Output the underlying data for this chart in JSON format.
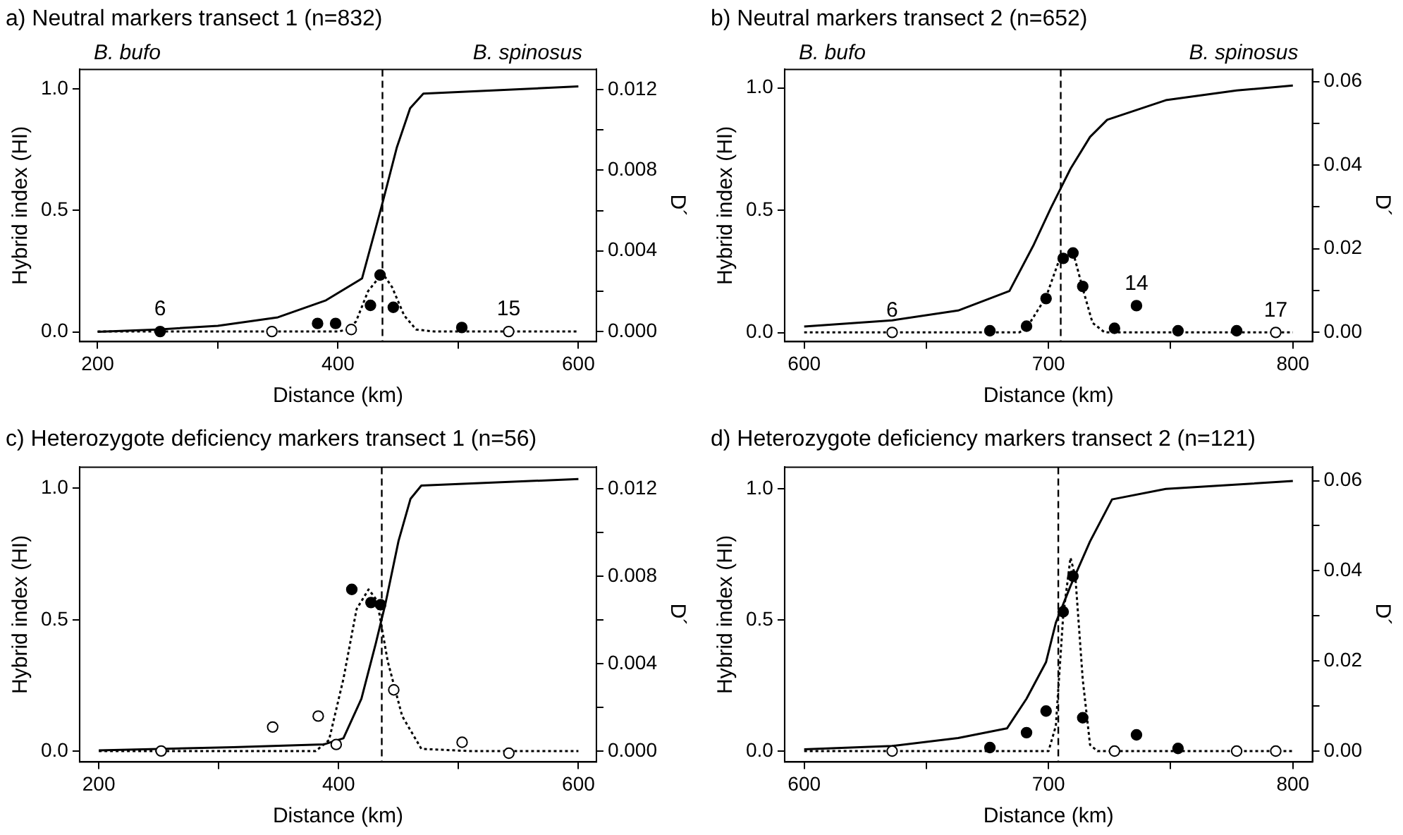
{
  "chart_data": [
    {
      "type": "line",
      "title": "a) Neutral markers transect 1 (n=832)",
      "xlabel": "Distance (km)",
      "ylabel": "Hybrid index (HI)",
      "y2label": "D´",
      "annotations": [
        "B. bufo",
        "B. spinosus",
        {
          "text": "6",
          "x": 252,
          "y": 0
        },
        {
          "text": "15",
          "x": 542,
          "y": 0
        }
      ],
      "xlim": [
        185,
        615
      ],
      "xticks": [
        200,
        {
          "value": 300,
          "label": null
        },
        400,
        {
          "value": 500,
          "label": null
        },
        600
      ],
      "ylim": [
        -0.04,
        1.08
      ],
      "yticks": [
        {
          "value": 0,
          "label": "0.0"
        },
        {
          "value": 0.5,
          "label": "0.5"
        },
        {
          "value": 1,
          "label": "1.0"
        }
      ],
      "y2lim": [
        -0.0005,
        0.013
      ],
      "y2ticks": [
        {
          "value": 0,
          "label": "0.000"
        },
        {
          "value": 0.002,
          "label": null
        },
        {
          "value": 0.004,
          "label": "0.004"
        },
        {
          "value": 0.006,
          "label": null
        },
        {
          "value": 0.008,
          "label": "0.008"
        },
        {
          "value": 0.01,
          "label": null
        },
        {
          "value": 0.012,
          "label": "0.012"
        }
      ],
      "grid": false,
      "legend": false,
      "ref_lines": [
        {
          "axis": "x",
          "value": 437,
          "line_style": "dashed",
          "color": "#000000"
        }
      ],
      "series": [
        {
          "type": "line",
          "color": "#000000",
          "line_style": "solid",
          "marker": "none",
          "x": [
            200,
            250,
            300,
            350,
            390,
            420,
            431,
            437,
            449,
            460,
            471,
            600
          ],
          "values": [
            0.0,
            0.01,
            0.025,
            0.06,
            0.13,
            0.22,
            0.42,
            0.53,
            0.76,
            0.92,
            0.98,
            1.01
          ]
        },
        {
          "type": "line",
          "axis": "y2",
          "color": "#000000",
          "line_style": "dotted",
          "marker": "none",
          "x": [
            200,
            400,
            408,
            415,
            425,
            437,
            445,
            455,
            465,
            480,
            600
          ],
          "values": [
            0,
            0,
            0.0001,
            0.0005,
            0.002,
            0.0029,
            0.0022,
            0.0008,
            0.0001,
            0,
            0
          ]
        },
        {
          "type": "scatter",
          "axis": "y2",
          "color": "#000000",
          "marker": "circle",
          "x": [
            252,
            383,
            398,
            427,
            435,
            446,
            503
          ],
          "values": [
            0,
            0.0004,
            0.0004,
            0.0013,
            0.0028,
            0.0012,
            0.0002
          ]
        },
        {
          "type": "scatter",
          "axis": "y2",
          "color": "#ffffff",
          "marker": "circle",
          "x": [
            345,
            411,
            542
          ],
          "values": [
            0,
            0.0001,
            0
          ]
        }
      ]
    },
    {
      "type": "line",
      "title": "b) Neutral markers transect 2 (n=652)",
      "xlabel": "Distance (km)",
      "ylabel": "Hybrid index (HI)",
      "y2label": "D´",
      "annotations": [
        "B. bufo",
        "B. spinosus",
        {
          "text": "6",
          "x": 636,
          "y": 0
        },
        {
          "text": "14",
          "x": 736,
          "y": 0.0064
        },
        {
          "text": "17",
          "x": 793,
          "y": 0
        }
      ],
      "xlim": [
        592,
        808
      ],
      "xticks": [
        600,
        {
          "value": 650,
          "label": null
        },
        700,
        {
          "value": 750,
          "label": null
        },
        800
      ],
      "ylim": [
        -0.037,
        1.076
      ],
      "yticks": [
        {
          "value": 0,
          "label": "0.0"
        },
        {
          "value": 0.5,
          "label": "0.5"
        },
        {
          "value": 1,
          "label": "1.0"
        }
      ],
      "y2lim": [
        -0.0022,
        0.0629
      ],
      "y2ticks": [
        {
          "value": 0,
          "label": "0.00"
        },
        {
          "value": 0.01,
          "label": null
        },
        {
          "value": 0.02,
          "label": "0.02"
        },
        {
          "value": 0.03,
          "label": null
        },
        {
          "value": 0.04,
          "label": "0.04"
        },
        {
          "value": 0.05,
          "label": null
        },
        {
          "value": 0.06,
          "label": "0.06"
        }
      ],
      "grid": false,
      "legend": false,
      "ref_lines": [
        {
          "axis": "x",
          "value": 705,
          "line_style": "dashed",
          "color": "#000000"
        }
      ],
      "series": [
        {
          "type": "line",
          "color": "#000000",
          "line_style": "solid",
          "marker": "none",
          "x": [
            600,
            636,
            663,
            684,
            694,
            701,
            709,
            717,
            724,
            748,
            777,
            800
          ],
          "values": [
            0.025,
            0.05,
            0.09,
            0.17,
            0.36,
            0.51,
            0.67,
            0.8,
            0.87,
            0.95,
            0.99,
            1.01
          ]
        },
        {
          "type": "line",
          "axis": "y2",
          "color": "#000000",
          "line_style": "dotted",
          "marker": "none",
          "x": [
            600,
            688,
            691,
            699,
            704,
            710,
            714,
            718,
            723,
            800
          ],
          "values": [
            0,
            0,
            0.001,
            0.0085,
            0.0167,
            0.0193,
            0.0105,
            0.0023,
            0,
            0
          ]
        },
        {
          "type": "scatter",
          "axis": "y2",
          "color": "#000000",
          "marker": "circle",
          "x": [
            676,
            691,
            699,
            706,
            710,
            714,
            727,
            736,
            753,
            777
          ],
          "values": [
            0.0004,
            0.0015,
            0.0081,
            0.0177,
            0.019,
            0.011,
            0.001,
            0.0064,
            0.0004,
            0.0004
          ]
        },
        {
          "type": "scatter",
          "axis": "y2",
          "color": "#ffffff",
          "marker": "circle",
          "x": [
            636,
            793
          ],
          "values": [
            0,
            0
          ]
        }
      ]
    },
    {
      "type": "line",
      "title": "c) Heterozygote deficiency markers transect 1 (n=56)",
      "xlabel": "Distance (km)",
      "ylabel": "Hybrid index (HI)",
      "y2label": "D´",
      "xlim": [
        184,
        615
      ],
      "xticks": [
        200,
        {
          "value": 300,
          "label": null
        },
        400,
        {
          "value": 500,
          "label": null
        },
        600
      ],
      "ylim": [
        -0.04,
        1.08
      ],
      "yticks": [
        {
          "value": 0,
          "label": "0.0"
        },
        {
          "value": 0.5,
          "label": "0.5"
        },
        {
          "value": 1,
          "label": "1.0"
        }
      ],
      "y2lim": [
        -0.0005,
        0.013
      ],
      "y2ticks": [
        {
          "value": 0,
          "label": "0.000"
        },
        {
          "value": 0.002,
          "label": null
        },
        {
          "value": 0.004,
          "label": "0.004"
        },
        {
          "value": 0.006,
          "label": null
        },
        {
          "value": 0.008,
          "label": "0.008"
        },
        {
          "value": 0.01,
          "label": null
        },
        {
          "value": 0.012,
          "label": "0.012"
        }
      ],
      "grid": false,
      "legend": false,
      "ref_lines": [
        {
          "axis": "x",
          "value": 436,
          "line_style": "dashed",
          "color": "#000000"
        }
      ],
      "series": [
        {
          "type": "line",
          "color": "#000000",
          "line_style": "solid",
          "marker": "none",
          "x": [
            200,
            312,
            388,
            404,
            419,
            431,
            439,
            450,
            460,
            469,
            600
          ],
          "values": [
            0.004,
            0.016,
            0.027,
            0.05,
            0.2,
            0.41,
            0.56,
            0.8,
            0.96,
            1.01,
            1.035
          ]
        },
        {
          "type": "line",
          "axis": "y2",
          "color": "#000000",
          "line_style": "dotted",
          "marker": "none",
          "x": [
            200,
            381,
            392,
            404,
            415,
            425,
            432,
            441,
            453,
            469,
            508,
            600
          ],
          "values": [
            0,
            0,
            0.0005,
            0.0033,
            0.0065,
            0.0074,
            0.0069,
            0.0041,
            0.0016,
            0.0001,
            0,
            0
          ]
        },
        {
          "type": "scatter",
          "axis": "y2",
          "color": "#000000",
          "marker": "circle",
          "x": [
            411,
            427,
            435
          ],
          "values": [
            0.0074,
            0.0068,
            0.0067
          ]
        },
        {
          "type": "scatter",
          "axis": "y2",
          "color": "#ffffff",
          "marker": "circle",
          "x": [
            252,
            345,
            383,
            398,
            446,
            503,
            542
          ],
          "values": [
            0,
            0.0011,
            0.0016,
            0.0003,
            0.0028,
            0.0004,
            -0.0001
          ]
        }
      ]
    },
    {
      "type": "line",
      "title": "d) Heterozygote deficiency markers transect 2 (n=121)",
      "xlabel": "Distance (km)",
      "ylabel": "Hybrid index (HI)",
      "y2label": "D´",
      "xlim": [
        592,
        808
      ],
      "xticks": [
        600,
        {
          "value": 650,
          "label": null
        },
        700,
        {
          "value": 750,
          "label": null
        },
        800
      ],
      "ylim": [
        -0.041,
        1.083
      ],
      "yticks": [
        {
          "value": 0,
          "label": "0.0"
        },
        {
          "value": 0.5,
          "label": "0.5"
        },
        {
          "value": 1,
          "label": "1.0"
        }
      ],
      "y2lim": [
        -0.0024,
        0.063
      ],
      "y2ticks": [
        {
          "value": 0,
          "label": "0.00"
        },
        {
          "value": 0.01,
          "label": null
        },
        {
          "value": 0.02,
          "label": "0.02"
        },
        {
          "value": 0.03,
          "label": null
        },
        {
          "value": 0.04,
          "label": "0.04"
        },
        {
          "value": 0.05,
          "label": null
        },
        {
          "value": 0.06,
          "label": "0.06"
        }
      ],
      "grid": false,
      "legend": false,
      "ref_lines": [
        {
          "axis": "x",
          "value": 704,
          "line_style": "dashed",
          "color": "#000000"
        }
      ],
      "series": [
        {
          "type": "line",
          "color": "#000000",
          "line_style": "solid",
          "marker": "none",
          "x": [
            600,
            636,
            663,
            683,
            691,
            699,
            703,
            709,
            717,
            726,
            748,
            800
          ],
          "values": [
            0.007,
            0.02,
            0.05,
            0.087,
            0.2,
            0.34,
            0.49,
            0.63,
            0.8,
            0.96,
            1.0,
            1.03
          ]
        },
        {
          "type": "line",
          "axis": "y2",
          "color": "#000000",
          "line_style": "dotted",
          "marker": "none",
          "x": [
            600,
            700,
            703,
            706,
            709,
            711,
            714,
            717,
            720,
            800
          ],
          "values": [
            0,
            0,
            0.0056,
            0.03,
            0.0429,
            0.0386,
            0.0159,
            0.0014,
            0,
            0
          ]
        },
        {
          "type": "scatter",
          "axis": "y2",
          "color": "#000000",
          "marker": "circle",
          "x": [
            676,
            691,
            699,
            706,
            710,
            714,
            736,
            753
          ],
          "values": [
            0.0008,
            0.0041,
            0.0089,
            0.0309,
            0.0388,
            0.0074,
            0.0036,
            0.0006
          ]
        },
        {
          "type": "scatter",
          "axis": "y2",
          "color": "#ffffff",
          "marker": "circle",
          "x": [
            636,
            727,
            777,
            793
          ],
          "values": [
            0,
            0,
            0,
            0
          ]
        }
      ]
    }
  ]
}
